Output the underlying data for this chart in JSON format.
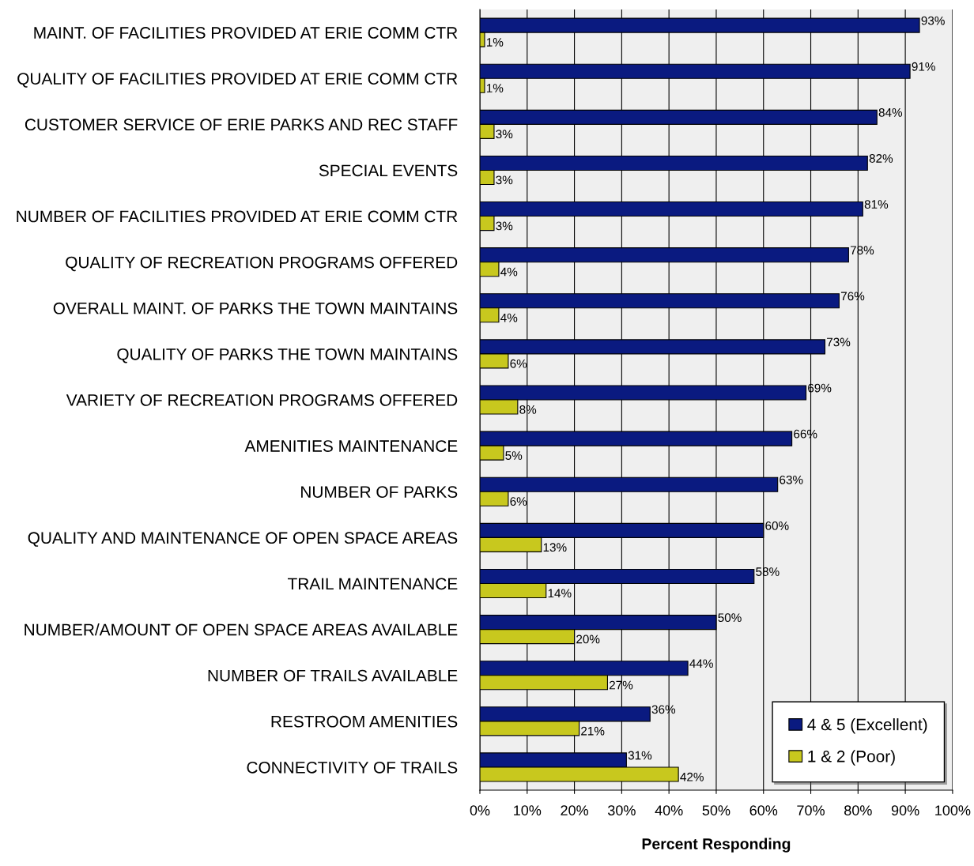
{
  "chart_data": {
    "type": "bar",
    "orientation": "horizontal",
    "xlabel": "Percent Responding",
    "categories": [
      "MAINT. OF FACILITIES PROVIDED AT ERIE COMM CTR",
      "QUALITY OF FACILITIES PROVIDED AT ERIE COMM CTR",
      "CUSTOMER SERVICE OF ERIE PARKS AND REC STAFF",
      "SPECIAL EVENTS",
      "NUMBER OF FACILITIES PROVIDED AT ERIE COMM CTR",
      "QUALITY OF RECREATION PROGRAMS OFFERED",
      "OVERALL MAINT. OF PARKS THE TOWN MAINTAINS",
      "QUALITY OF PARKS THE TOWN MAINTAINS",
      "VARIETY OF RECREATION PROGRAMS OFFERED",
      "AMENITIES MAINTENANCE",
      "NUMBER OF PARKS",
      "QUALITY AND MAINTENANCE OF OPEN SPACE AREAS",
      "TRAIL MAINTENANCE",
      "NUMBER/AMOUNT OF OPEN SPACE AREAS AVAILABLE",
      "NUMBER OF TRAILS AVAILABLE",
      "RESTROOM AMENITIES",
      "CONNECTIVITY OF TRAILS"
    ],
    "series": [
      {
        "name": "4 & 5 (Excellent)",
        "color": "#0a1a80",
        "values": [
          93,
          91,
          84,
          82,
          81,
          78,
          76,
          73,
          69,
          66,
          63,
          60,
          58,
          50,
          44,
          36,
          31
        ],
        "value_labels": [
          "93%",
          "91%",
          "84%",
          "82%",
          "81%",
          "78%",
          "76%",
          "73%",
          "69%",
          "66%",
          "63%",
          "60%",
          "58%",
          "50%",
          "44%",
          "36%",
          "31%"
        ]
      },
      {
        "name": "1 & 2 (Poor)",
        "color": "#c8c81e",
        "values": [
          1,
          1,
          3,
          3,
          3,
          4,
          4,
          6,
          8,
          5,
          6,
          13,
          14,
          20,
          27,
          21,
          42
        ],
        "value_labels": [
          "1%",
          "1%",
          "3%",
          "3%",
          "3%",
          "4%",
          "4%",
          "6%",
          "8%",
          "5%",
          "6%",
          "13%",
          "14%",
          "20%",
          "27%",
          "21%",
          "42%"
        ]
      }
    ],
    "xlim": [
      0,
      100
    ],
    "xticks": [
      {
        "value": 0,
        "label": "0%"
      },
      {
        "value": 10,
        "label": "10%"
      },
      {
        "value": 20,
        "label": "20%"
      },
      {
        "value": 30,
        "label": "30%"
      },
      {
        "value": 40,
        "label": "40%"
      },
      {
        "value": 50,
        "label": "50%"
      },
      {
        "value": 60,
        "label": "60%"
      },
      {
        "value": 70,
        "label": "70%"
      },
      {
        "value": 80,
        "label": "80%"
      },
      {
        "value": 90,
        "label": "90%"
      },
      {
        "value": 100,
        "label": "100%"
      }
    ],
    "grid": "x",
    "legend": "bottom right"
  }
}
